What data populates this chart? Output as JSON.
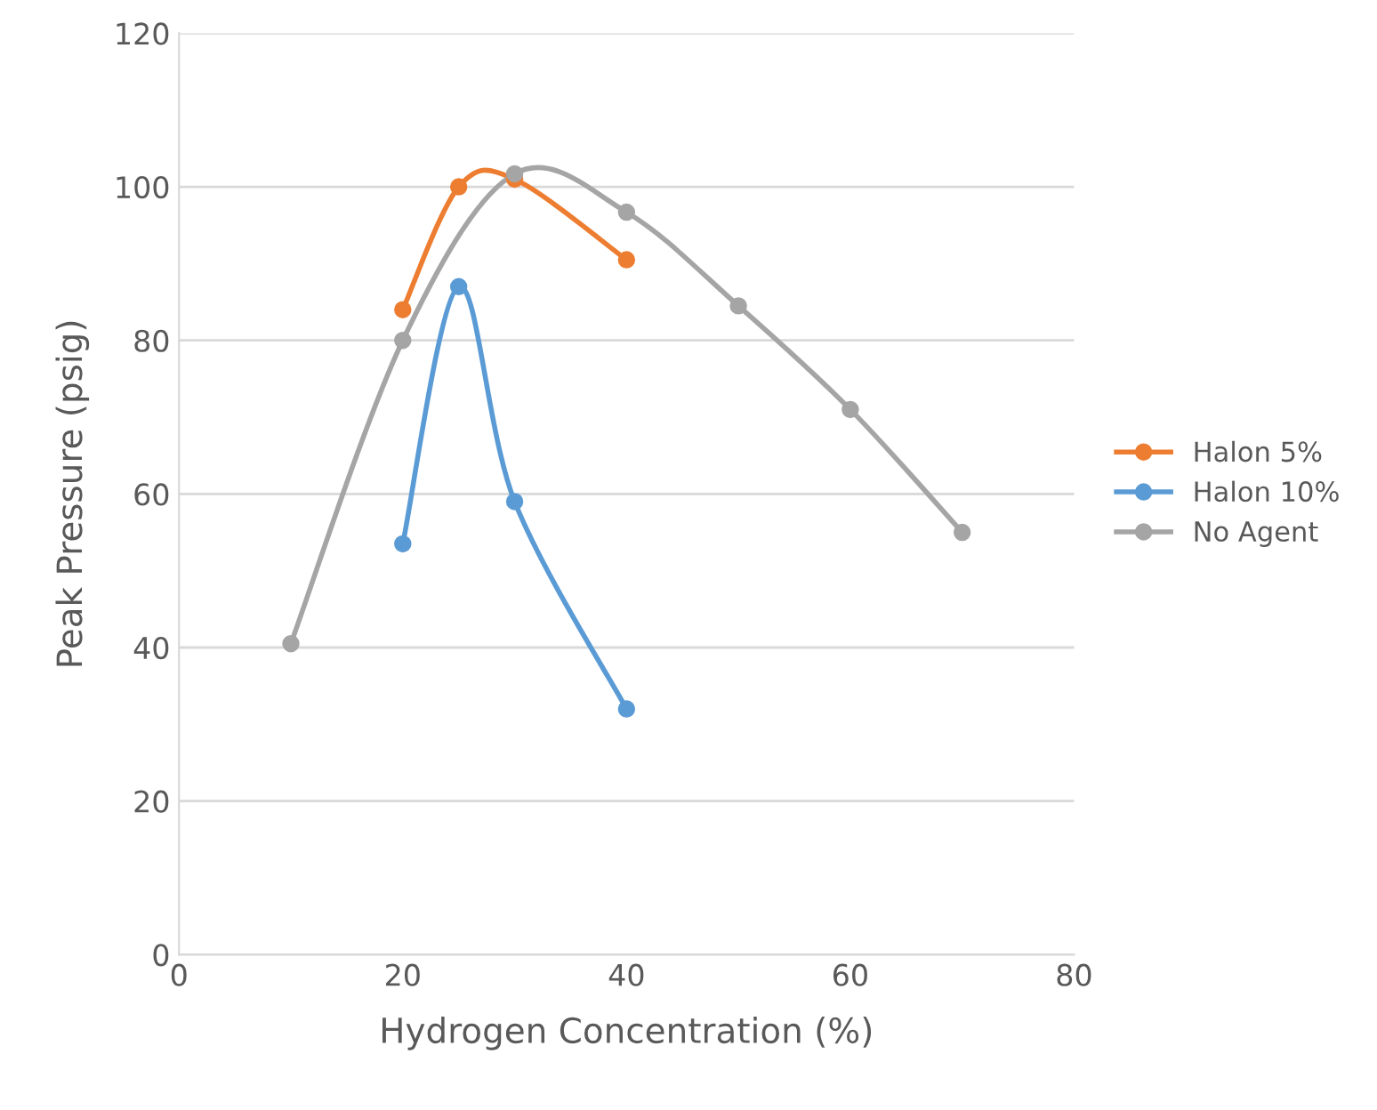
{
  "chart_data": {
    "type": "line",
    "xlabel": "Hydrogen Concentration (%)",
    "ylabel": "Peak Pressure (psig)",
    "xlim": [
      0,
      80
    ],
    "xticks": [
      0,
      20,
      40,
      60,
      80
    ],
    "ylim": [
      0,
      120
    ],
    "yticks": [
      0,
      20,
      40,
      60,
      80,
      100,
      120
    ],
    "grid": "y",
    "legend": "right",
    "marker": "circle",
    "line_style": "solid",
    "series": [
      {
        "name": "Halon 5%",
        "color": "#ed7d31",
        "x": [
          20,
          25,
          30,
          40
        ],
        "values": [
          84,
          100,
          101,
          90.5
        ]
      },
      {
        "name": "Halon 10%",
        "color": "#5b9bd5",
        "x": [
          20,
          25,
          30,
          40
        ],
        "values": [
          53.5,
          87,
          59,
          32
        ]
      },
      {
        "name": "No Agent",
        "color": "#a5a5a5",
        "x": [
          10,
          20,
          30,
          40,
          50,
          60,
          70
        ],
        "values": [
          40.5,
          80,
          101.7,
          96.7,
          84.5,
          71,
          55
        ]
      }
    ]
  }
}
